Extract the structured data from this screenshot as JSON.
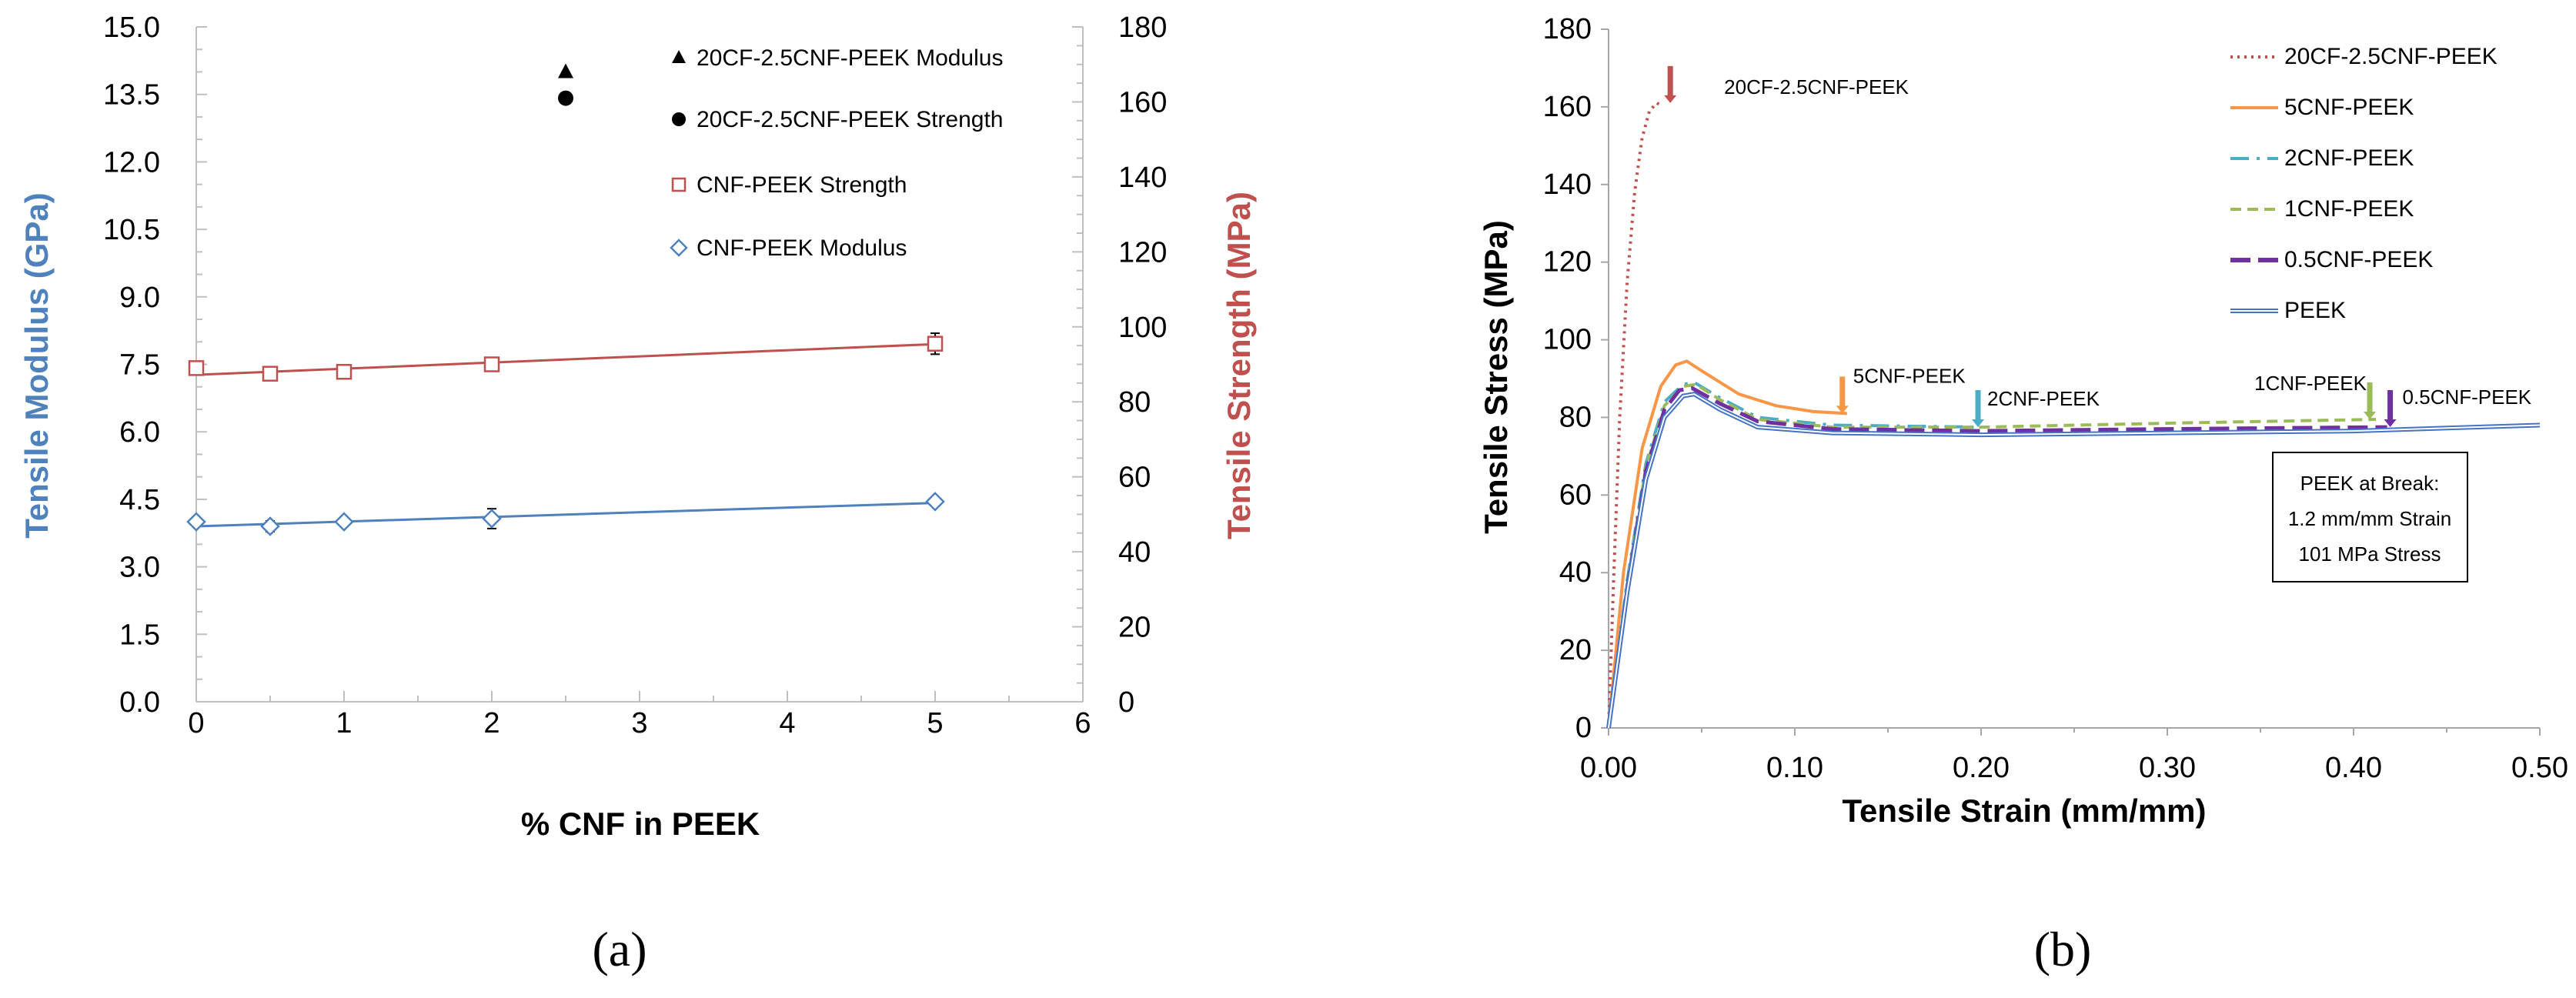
{
  "chart_data": [
    {
      "type": "scatter",
      "panel_label": "(a)",
      "xlabel": "% CNF in PEEK",
      "ylabel_left": "Tensile Modulus (GPa)",
      "ylabel_right": "Tensile Strength (MPa)",
      "xlim": [
        0,
        6
      ],
      "ylim_left": [
        0,
        15
      ],
      "ylim_right": [
        0,
        180
      ],
      "x_ticks": [
        "0",
        "1",
        "2",
        "3",
        "4",
        "5",
        "6"
      ],
      "y_left_ticks": [
        "0.0",
        "1.5",
        "3.0",
        "4.5",
        "6.0",
        "7.5",
        "9.0",
        "10.5",
        "12.0",
        "13.5",
        "15.0"
      ],
      "y_right_ticks": [
        "0",
        "20",
        "40",
        "60",
        "80",
        "100",
        "120",
        "140",
        "160",
        "180"
      ],
      "colors": {
        "modulus": "#4f81bd",
        "strength": "#c0504d",
        "hybrid": "#000000"
      },
      "series": [
        {
          "name": "20CF-2.5CNF-PEEK Modulus",
          "axis": "left",
          "marker": "triangle",
          "x": [
            2.5
          ],
          "y": [
            14.0
          ]
        },
        {
          "name": "20CF-2.5CNF-PEEK Strength",
          "axis": "right",
          "marker": "circle",
          "x": [
            2.5
          ],
          "y": [
            161
          ]
        },
        {
          "name": "CNF-PEEK Strength",
          "axis": "right",
          "marker": "square",
          "x": [
            0,
            0.5,
            1,
            2,
            5
          ],
          "y": [
            89,
            87.5,
            88,
            90,
            95.5
          ],
          "err": [
            0.8,
            1.0,
            1.0,
            0.8,
            2.8
          ],
          "trend": [
            87.2,
            95.4
          ]
        },
        {
          "name": "CNF-PEEK Modulus",
          "axis": "left",
          "marker": "diamond",
          "x": [
            0,
            0.5,
            1,
            2,
            5
          ],
          "y": [
            4.0,
            3.9,
            4.0,
            4.07,
            4.45
          ],
          "err": [
            0.05,
            0.12,
            0.07,
            0.22,
            0.08
          ],
          "trend": [
            3.9,
            4.42
          ]
        }
      ]
    },
    {
      "type": "line",
      "panel_label": "(b)",
      "xlabel": "Tensile Strain (mm/mm)",
      "ylabel": "Tensile Stress (MPa)",
      "xlim": [
        0,
        0.5
      ],
      "ylim": [
        0,
        180
      ],
      "x_ticks": [
        "0.00",
        "0.10",
        "0.20",
        "0.30",
        "0.40",
        "0.50"
      ],
      "y_ticks": [
        "0",
        "20",
        "40",
        "60",
        "80",
        "100",
        "120",
        "140",
        "160",
        "180"
      ],
      "series": [
        {
          "name": "20CF-2.5CNF-PEEK",
          "color": "#c0504d",
          "style": "dotted",
          "x": [
            0,
            0.003,
            0.006,
            0.01,
            0.014,
            0.018,
            0.022,
            0.026,
            0.029
          ],
          "y": [
            0,
            42,
            80,
            115,
            138,
            152,
            159,
            161,
            160
          ]
        },
        {
          "name": "5CNF-PEEK",
          "color": "#f79646",
          "style": "solid",
          "x": [
            0,
            0.008,
            0.018,
            0.028,
            0.036,
            0.042,
            0.05,
            0.07,
            0.09,
            0.11,
            0.128
          ],
          "y": [
            0,
            40,
            72,
            88,
            93.5,
            94.5,
            92,
            86,
            83,
            81.5,
            81
          ]
        },
        {
          "name": "2CNF-PEEK",
          "color": "#4bacc6",
          "style": "dashdot",
          "x": [
            0,
            0.01,
            0.02,
            0.03,
            0.04,
            0.046,
            0.06,
            0.08,
            0.12,
            0.2
          ],
          "y": [
            0,
            38,
            68,
            84,
            88.5,
            89,
            85,
            80,
            78,
            77.5
          ]
        },
        {
          "name": "1CNF-PEEK",
          "color": "#9bbb59",
          "style": "dashed",
          "x": [
            0,
            0.01,
            0.02,
            0.03,
            0.04,
            0.047,
            0.06,
            0.08,
            0.12,
            0.2,
            0.3,
            0.412
          ],
          "y": [
            0,
            37,
            67,
            83,
            88,
            88.5,
            84.5,
            79.5,
            77.5,
            77.5,
            78.5,
            79.5
          ]
        },
        {
          "name": "0.5CNF-PEEK",
          "color": "#7030a0",
          "style": "longdash",
          "x": [
            0,
            0.01,
            0.02,
            0.03,
            0.038,
            0.045,
            0.06,
            0.08,
            0.12,
            0.2,
            0.3,
            0.418
          ],
          "y": [
            0,
            36,
            66,
            82,
            87,
            87.5,
            83.5,
            79,
            77,
            76.5,
            77,
            77.5
          ]
        },
        {
          "name": "PEEK",
          "color": "#4472c4",
          "style": "double",
          "x": [
            0,
            0.01,
            0.02,
            0.03,
            0.04,
            0.046,
            0.06,
            0.08,
            0.12,
            0.2,
            0.3,
            0.4,
            0.5
          ],
          "y": [
            0,
            35,
            64,
            80,
            85.5,
            86,
            82,
            77.5,
            76,
            75.5,
            76,
            76.5,
            78
          ]
        }
      ],
      "annotations": [
        {
          "text": "20CF-2.5CNF-PEEK",
          "x": 0.029,
          "y": 161,
          "color": "#c0504d"
        },
        {
          "text": "5CNF-PEEK",
          "x": 0.128,
          "y": 81,
          "color": "#f79646"
        },
        {
          "text": "2CNF-PEEK",
          "x": 0.2,
          "y": 77.5,
          "color": "#4bacc6"
        },
        {
          "text": "1CNF-PEEK",
          "x": 0.412,
          "y": 79.5,
          "color": "#9bbb59"
        },
        {
          "text": "0.5CNF-PEEK",
          "x": 0.418,
          "y": 77.5,
          "color": "#7030a0"
        }
      ],
      "note": [
        "PEEK at Break:",
        "1.2 mm/mm Strain",
        "101 MPa Stress"
      ]
    }
  ]
}
